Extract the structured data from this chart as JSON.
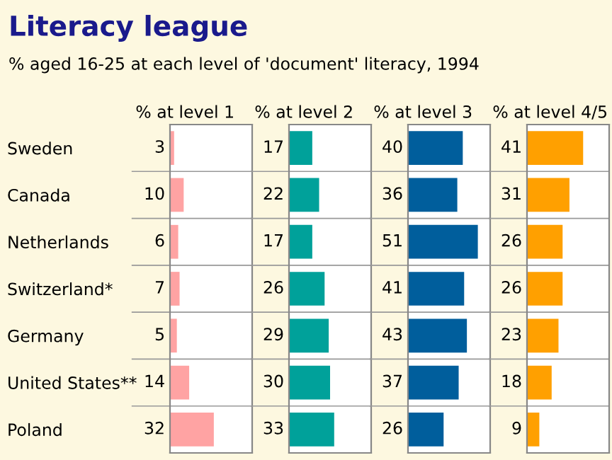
{
  "chart_data": [
    {
      "type": "other",
      "title": "Literacy league",
      "subtitle": "% aged 16-25 at each level of 'document' literacy, 1994"
    },
    {
      "type": "bar",
      "orientation": "horizontal",
      "title": "% at level 1",
      "categories": [
        "Sweden",
        "Canada",
        "Netherlands",
        "Switzerland*",
        "Germany",
        "United States**",
        "Poland"
      ],
      "values": [
        3,
        10,
        6,
        7,
        5,
        14,
        32
      ],
      "color": "#ffa3a3",
      "xlim": [
        0,
        60
      ],
      "data_labels": true,
      "tick_labels": "y"
    },
    {
      "type": "bar",
      "orientation": "horizontal",
      "title": "% at level 2",
      "categories": [
        null,
        null,
        null,
        null,
        null,
        null,
        null
      ],
      "values": [
        17,
        22,
        17,
        26,
        29,
        30,
        33
      ],
      "color": "#00a19a",
      "xlim": [
        0,
        60
      ],
      "data_labels": true,
      "tick_labels": false
    },
    {
      "type": "bar",
      "orientation": "horizontal",
      "title": "% at level 3",
      "categories": [
        null,
        null,
        null,
        null,
        null,
        null,
        null
      ],
      "values": [
        40,
        36,
        51,
        41,
        43,
        37,
        26
      ],
      "color": "#005e9c",
      "xlim": [
        0,
        60
      ],
      "data_labels": true,
      "tick_labels": false
    },
    {
      "type": "bar",
      "orientation": "horizontal",
      "title": "% at level 4/5",
      "categories": [
        null,
        null,
        null,
        null,
        null,
        null,
        null
      ],
      "values": [
        41,
        31,
        26,
        26,
        23,
        18,
        9
      ],
      "color": "#ffa000",
      "xlim": [
        0,
        60
      ],
      "data_labels": true,
      "tick_labels": false
    }
  ]
}
